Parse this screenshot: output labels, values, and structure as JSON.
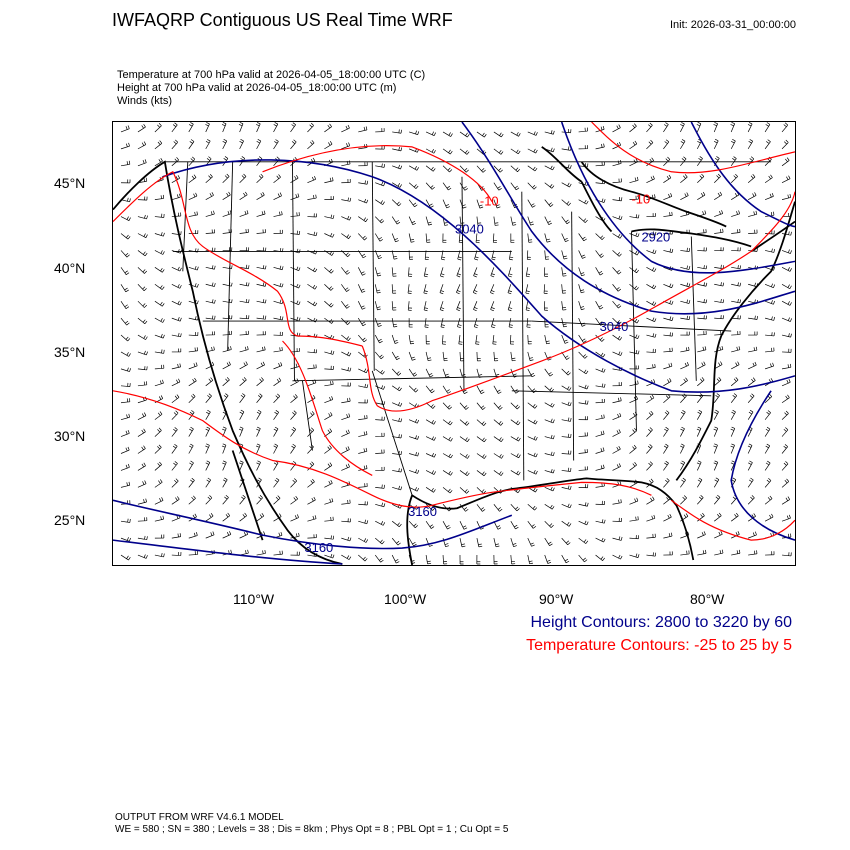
{
  "title": "IWFAQRP Contiguous US Real Time WRF",
  "init": "Init: 2026-03-31_00:00:00",
  "info": {
    "line1": "Temperature at 700 hPa valid at 2026-04-05_18:00:00 UTC   (C)",
    "line2": "Height at 700 hPa valid at 2026-04-05_18:00:00 UTC   (m)",
    "line3": "Winds   (kts)"
  },
  "lat_labels": [
    "45°N",
    "40°N",
    "35°N",
    "30°N",
    "25°N"
  ],
  "lon_labels": [
    "110°W",
    "100°W",
    "90°W",
    "80°W"
  ],
  "contour_labels": {
    "height": [
      "3040",
      "2920",
      "3040",
      "3160",
      "3160"
    ],
    "temp": [
      "-10",
      "-10"
    ]
  },
  "legend": {
    "height": "Height Contours: 2800 to 3220 by 60",
    "temp": "Temperature Contours: -25 to 25 by 5"
  },
  "footer": {
    "line1": "OUTPUT FROM WRF V4.6.1 MODEL",
    "line2": "WE = 580 ; SN = 380 ; Levels = 38 ; Dis = 8km ; Phys Opt = 8 ; PBL Opt = 1 ; Cu Opt = 5"
  },
  "colors": {
    "height": "#00008b",
    "temp": "#ff0000",
    "borders": "#000000"
  }
}
